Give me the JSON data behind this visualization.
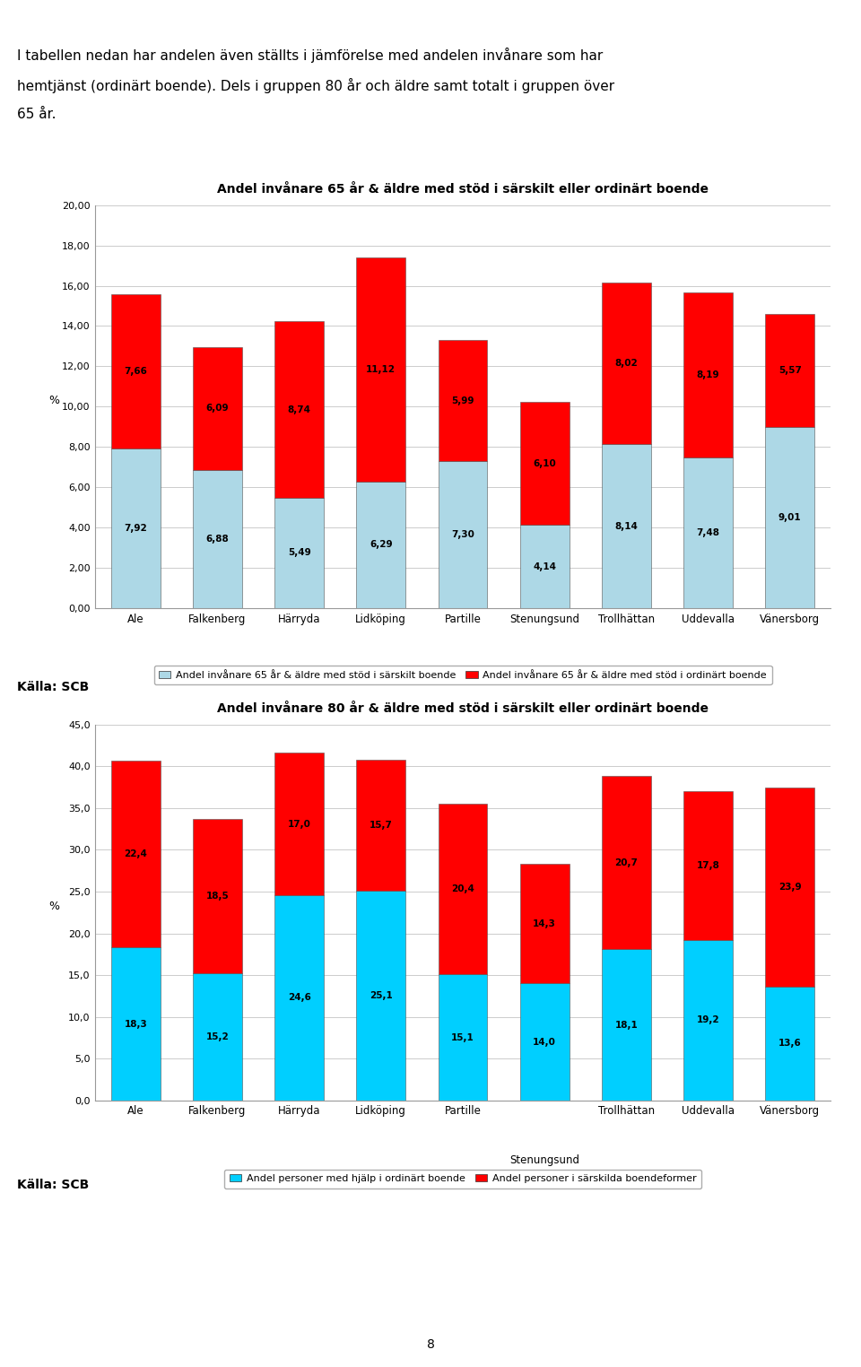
{
  "intro_text_lines": [
    "I tabellen nedan har andelen även ställts i jämförelse med andelen invånare som har",
    "hemtjänst (ordinärt boende). Dels i gruppen 80 år och äldre samt totalt i gruppen över",
    "65 år."
  ],
  "chart1": {
    "title": "Andel invånare 65 år & äldre med stöd i särskilt eller ordinärt boende",
    "categories": [
      "Ale",
      "Falkenberg",
      "Härryda",
      "Lidköping",
      "Partille",
      "Stenungsund",
      "Trollhättan",
      "Uddevalla",
      "Vänersborg"
    ],
    "sarskilt": [
      7.92,
      6.88,
      5.49,
      6.29,
      7.3,
      4.14,
      8.14,
      7.48,
      9.01
    ],
    "ordinart": [
      7.66,
      6.09,
      8.74,
      11.12,
      5.99,
      6.1,
      8.02,
      8.19,
      5.57
    ],
    "ylim": [
      0,
      20
    ],
    "yticks": [
      0,
      2.0,
      4.0,
      6.0,
      8.0,
      10.0,
      12.0,
      14.0,
      16.0,
      18.0,
      20.0
    ],
    "ytick_labels": [
      "0,00",
      "2,00",
      "4,00",
      "6,00",
      "8,00",
      "10,00",
      "12,00",
      "14,00",
      "16,00",
      "18,00",
      "20,00"
    ],
    "ylabel": "%",
    "color_sarskilt": "#ADD8E6",
    "color_ordinart": "#FF0000",
    "legend1": "Andel invånare 65 år & äldre med stöd i särskilt boende",
    "legend2": "Andel invånare 65 år & äldre med stöd i ordinärt boende"
  },
  "chart2": {
    "title": "Andel invånare 80 år & äldre med stöd i särskilt eller ordinärt boende",
    "categories": [
      "Ale",
      "Falkenberg",
      "Härryda",
      "Lidköping",
      "Partille",
      "Stenungsund",
      "Trollhättan",
      "Uddevalla",
      "Vänersborg"
    ],
    "ordinart": [
      18.3,
      15.2,
      24.6,
      25.1,
      15.1,
      14.0,
      18.1,
      19.2,
      13.6
    ],
    "sarskilt": [
      22.4,
      18.5,
      17.0,
      15.7,
      20.4,
      14.3,
      20.7,
      17.8,
      23.9
    ],
    "ylim": [
      0,
      45
    ],
    "yticks": [
      0,
      5.0,
      10.0,
      15.0,
      20.0,
      25.0,
      30.0,
      35.0,
      40.0,
      45.0
    ],
    "ytick_labels": [
      "0,0",
      "5,0",
      "10,0",
      "15,0",
      "20,0",
      "25,0",
      "30,0",
      "35,0",
      "40,0",
      "45,0"
    ],
    "ylabel": "%",
    "color_ordinart": "#00CFFF",
    "color_sarskilt": "#FF0000",
    "legend1": "Andel personer med hjälp i ordinärt boende",
    "legend2": "Andel personer i särskilda boendeformer"
  },
  "kalla": "Källa: SCB",
  "page_number": "8",
  "background_color": "#FFFFFF"
}
